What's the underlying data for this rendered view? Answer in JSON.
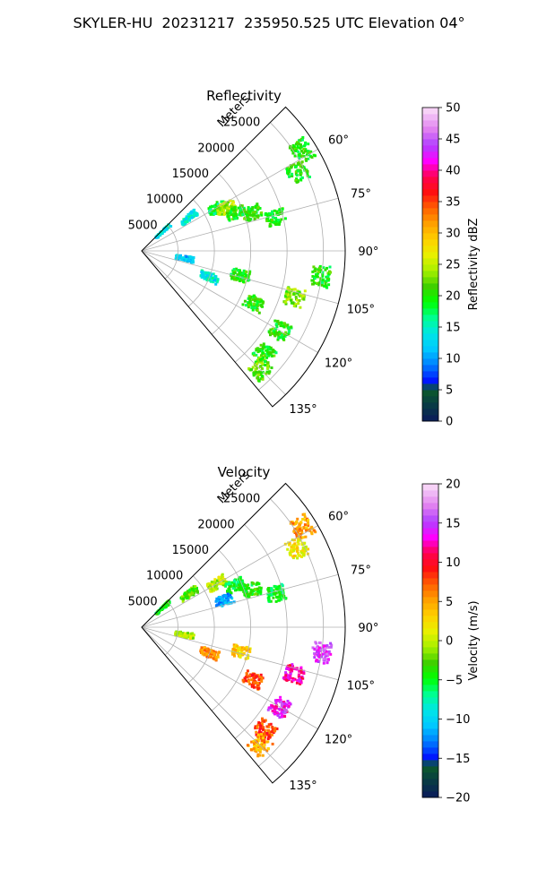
{
  "figure_title": "SKYLER-HU  20231217  235950.525 UTC Elevation 04°",
  "chart_data": [
    {
      "type": "radar-ppi-sector",
      "title": "Reflectivity",
      "range_label": "Meters",
      "range_ticks": [
        5000,
        10000,
        15000,
        20000,
        25000
      ],
      "range_tick_labels": [
        "5000",
        "10000",
        "15000",
        "20000",
        "25000"
      ],
      "range_max": 28000,
      "azimuth_range_deg": [
        45,
        140
      ],
      "azimuth_ticks": [
        60,
        75,
        90,
        105,
        120,
        135
      ],
      "azimuth_tick_labels": [
        "60°",
        "75°",
        "90°",
        "105°",
        "120°",
        "135°"
      ],
      "grid": true,
      "colorbar": {
        "label": "Reflectivity dBZ",
        "min": 0,
        "max": 50,
        "ticks": [
          0,
          5,
          10,
          15,
          20,
          25,
          30,
          35,
          40,
          45,
          50
        ],
        "tick_labels": [
          "0",
          "5",
          "10",
          "15",
          "20",
          "25",
          "30",
          "35",
          "40",
          "45",
          "50"
        ]
      },
      "echo_regions": [
        {
          "az": 47,
          "r": 4000,
          "value": 14
        },
        {
          "az": 55,
          "r": 8000,
          "value": 14
        },
        {
          "az": 60,
          "r": 12000,
          "value": 18
        },
        {
          "az": 63,
          "r": 13000,
          "value": 24
        },
        {
          "az": 68,
          "r": 14000,
          "value": 20
        },
        {
          "az": 58,
          "r": 26000,
          "value": 20
        },
        {
          "az": 63,
          "r": 24000,
          "value": 20
        },
        {
          "az": 71,
          "r": 16000,
          "value": 20
        },
        {
          "az": 76,
          "r": 19000,
          "value": 20
        },
        {
          "az": 100,
          "r": 6000,
          "value": 12
        },
        {
          "az": 104,
          "r": 14000,
          "value": 20
        },
        {
          "az": 98,
          "r": 25000,
          "value": 20
        },
        {
          "az": 107,
          "r": 22000,
          "value": 23
        },
        {
          "az": 120,
          "r": 22000,
          "value": 20
        },
        {
          "az": 130,
          "r": 22000,
          "value": 20
        },
        {
          "az": 135,
          "r": 23000,
          "value": 22
        },
        {
          "az": 115,
          "r": 17000,
          "value": 20
        },
        {
          "az": 111,
          "r": 10000,
          "value": 14
        }
      ]
    },
    {
      "type": "radar-ppi-sector",
      "title": "Velocity",
      "range_label": "Meters",
      "range_ticks": [
        5000,
        10000,
        15000,
        20000,
        25000
      ],
      "range_tick_labels": [
        "5000",
        "10000",
        "15000",
        "20000",
        "25000"
      ],
      "range_max": 28000,
      "azimuth_range_deg": [
        45,
        140
      ],
      "azimuth_ticks": [
        60,
        75,
        90,
        105,
        120,
        135
      ],
      "azimuth_tick_labels": [
        "60°",
        "75°",
        "90°",
        "105°",
        "120°",
        "135°"
      ],
      "grid": true,
      "colorbar": {
        "label": "Velocity (m/s)",
        "min": -20,
        "max": 20,
        "ticks": [
          -20,
          -15,
          -10,
          -5,
          0,
          5,
          10,
          15,
          20
        ],
        "tick_labels": [
          "−20",
          "−15",
          "−10",
          "−5",
          "0",
          "5",
          "10",
          "15",
          "20"
        ]
      },
      "echo_regions": [
        {
          "az": 47,
          "r": 4000,
          "value": -5
        },
        {
          "az": 55,
          "r": 8000,
          "value": -3
        },
        {
          "az": 60,
          "r": 12000,
          "value": 0
        },
        {
          "az": 66,
          "r": 14000,
          "value": -5
        },
        {
          "az": 72,
          "r": 12000,
          "value": -12
        },
        {
          "az": 58,
          "r": 26000,
          "value": 5
        },
        {
          "az": 63,
          "r": 24000,
          "value": 2
        },
        {
          "az": 71,
          "r": 16000,
          "value": -4
        },
        {
          "az": 76,
          "r": 19000,
          "value": -5
        },
        {
          "az": 100,
          "r": 6000,
          "value": 0
        },
        {
          "az": 104,
          "r": 14000,
          "value": 3
        },
        {
          "az": 98,
          "r": 25000,
          "value": 15
        },
        {
          "az": 107,
          "r": 22000,
          "value": 12
        },
        {
          "az": 120,
          "r": 22000,
          "value": 14
        },
        {
          "az": 130,
          "r": 22000,
          "value": 8
        },
        {
          "az": 135,
          "r": 23000,
          "value": 5
        },
        {
          "az": 115,
          "r": 17000,
          "value": 8
        },
        {
          "az": 111,
          "r": 10000,
          "value": 6
        }
      ]
    }
  ]
}
